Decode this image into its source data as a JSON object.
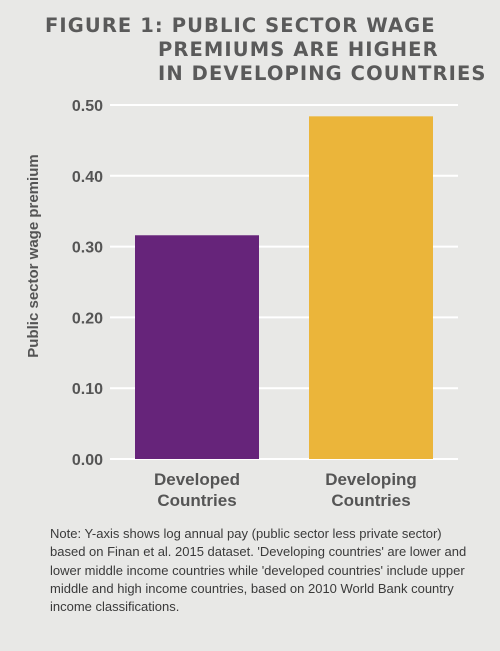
{
  "chart_data": {
    "type": "bar",
    "title_lines": [
      "FIGURE 1: PUBLIC SECTOR WAGE",
      "PREMIUMS ARE HIGHER",
      "IN DEVELOPING COUNTRIES"
    ],
    "ylabel": "Public sector wage premium",
    "xlabel": "",
    "categories": [
      {
        "lines": [
          "Developed",
          "Countries"
        ]
      },
      {
        "lines": [
          "Developing",
          "Countries"
        ]
      }
    ],
    "values": [
      0.316,
      0.484
    ],
    "bar_colors": [
      "#66247a",
      "#ebb53a"
    ],
    "ylim": [
      0,
      0.5
    ],
    "yticks": [
      "0.00",
      "0.10",
      "0.20",
      "0.30",
      "0.40",
      "0.50"
    ],
    "grid": true
  },
  "note": "Note:  Y-axis shows log annual pay (public sector less private sector) based on Finan et al. 2015 dataset. 'Developing countries' are lower and lower middle income countries while 'developed countries' include upper middle and high income countries, based on 2010 World Bank country income classifications.",
  "colors": {
    "background": "#e8e8e6",
    "grid": "#ffffff",
    "text": "#555555"
  }
}
